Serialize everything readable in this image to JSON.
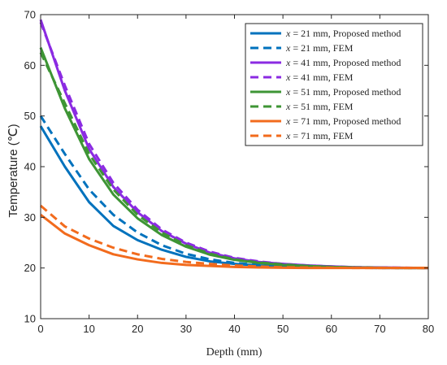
{
  "chart_data": {
    "type": "line",
    "title": "",
    "xlabel": "Depth (mm)",
    "ylabel": "Temperature (℃)",
    "xlim": [
      0,
      80
    ],
    "ylim": [
      10,
      70
    ],
    "xticks": [
      0,
      10,
      20,
      30,
      40,
      50,
      60,
      70,
      80
    ],
    "yticks": [
      10,
      20,
      30,
      40,
      50,
      60,
      70
    ],
    "grid": false,
    "legend_position": "top-right",
    "series": [
      {
        "name": "x = 21 mm, Proposed method",
        "name_var": "x",
        "name_rest": " = 21 mm, Proposed method",
        "color": "#0072BD",
        "dash": false,
        "x": [
          0,
          5,
          10,
          15,
          20,
          25,
          30,
          35,
          40,
          45,
          50,
          55,
          60,
          65,
          70,
          75,
          80
        ],
        "y": [
          48.0,
          40.0,
          33.0,
          28.3,
          25.5,
          23.6,
          22.2,
          21.3,
          20.8,
          20.5,
          20.3,
          20.2,
          20.1,
          20.05,
          20.0,
          20.0,
          20.0
        ]
      },
      {
        "name": "x = 21 mm, FEM",
        "name_var": "x",
        "name_rest": " = 21 mm, FEM",
        "color": "#0072BD",
        "dash": true,
        "x": [
          0,
          5,
          10,
          15,
          20,
          25,
          30,
          35,
          40,
          45,
          50,
          55,
          60,
          65,
          70,
          75,
          80
        ],
        "y": [
          50.0,
          42.5,
          35.5,
          30.5,
          27.0,
          24.5,
          22.8,
          21.7,
          21.0,
          20.6,
          20.4,
          20.2,
          20.1,
          20.05,
          20.0,
          20.0,
          20.0
        ]
      },
      {
        "name": "x = 41 mm, Proposed method",
        "name_var": "x",
        "name_rest": " = 41 mm, Proposed method",
        "color": "#8B2BE2",
        "dash": false,
        "x": [
          0,
          5,
          10,
          15,
          20,
          25,
          30,
          35,
          40,
          45,
          50,
          55,
          60,
          65,
          70,
          75,
          80
        ],
        "y": [
          69.0,
          55.0,
          43.5,
          36.0,
          31.0,
          27.3,
          24.8,
          23.0,
          21.9,
          21.2,
          20.8,
          20.5,
          20.3,
          20.15,
          20.1,
          20.05,
          20.0
        ]
      },
      {
        "name": "x = 41 mm, FEM",
        "name_var": "x",
        "name_rest": " = 41 mm, FEM",
        "color": "#8B2BE2",
        "dash": true,
        "x": [
          0,
          5,
          10,
          15,
          20,
          25,
          30,
          35,
          40,
          45,
          50,
          55,
          60,
          65,
          70,
          75,
          80
        ],
        "y": [
          68.5,
          56.0,
          44.5,
          36.8,
          31.5,
          27.6,
          25.0,
          23.2,
          22.0,
          21.3,
          20.8,
          20.5,
          20.3,
          20.15,
          20.1,
          20.05,
          20.0
        ]
      },
      {
        "name": "x = 51 mm, Proposed method",
        "name_var": "x",
        "name_rest": " = 51 mm, Proposed method",
        "color": "#3E9535",
        "dash": false,
        "x": [
          0,
          5,
          10,
          15,
          20,
          25,
          30,
          35,
          40,
          45,
          50,
          55,
          60,
          65,
          70,
          75,
          80
        ],
        "y": [
          63.5,
          51.5,
          41.5,
          34.5,
          29.8,
          26.5,
          24.2,
          22.6,
          21.6,
          21.0,
          20.6,
          20.4,
          20.2,
          20.1,
          20.05,
          20.0,
          20.0
        ]
      },
      {
        "name": "x = 51 mm, FEM",
        "name_var": "x",
        "name_rest": " = 51 mm, FEM",
        "color": "#3E9535",
        "dash": true,
        "x": [
          0,
          5,
          10,
          15,
          20,
          25,
          30,
          35,
          40,
          45,
          50,
          55,
          60,
          65,
          70,
          75,
          80
        ],
        "y": [
          62.5,
          52.5,
          42.5,
          35.5,
          30.5,
          27.0,
          24.5,
          22.8,
          21.7,
          21.1,
          20.7,
          20.4,
          20.2,
          20.1,
          20.05,
          20.0,
          20.0
        ]
      },
      {
        "name": "x = 71 mm, Proposed method",
        "name_var": "x",
        "name_rest": " = 71 mm, Proposed method",
        "color": "#F26B1D",
        "dash": false,
        "x": [
          0,
          5,
          10,
          15,
          20,
          25,
          30,
          35,
          40,
          45,
          50,
          55,
          60,
          65,
          70,
          75,
          80
        ],
        "y": [
          30.5,
          26.8,
          24.5,
          22.7,
          21.7,
          21.0,
          20.6,
          20.4,
          20.2,
          20.1,
          20.05,
          20.0,
          20.0,
          20.0,
          20.0,
          20.0,
          20.0
        ]
      },
      {
        "name": "x = 71 mm, FEM",
        "name_var": "x",
        "name_rest": " = 71 mm, FEM",
        "color": "#F26B1D",
        "dash": true,
        "x": [
          0,
          5,
          10,
          15,
          20,
          25,
          30,
          35,
          40,
          45,
          50,
          55,
          60,
          65,
          70,
          75,
          80
        ],
        "y": [
          32.3,
          28.2,
          25.8,
          24.0,
          22.7,
          21.8,
          21.2,
          20.8,
          20.5,
          20.3,
          20.15,
          20.1,
          20.05,
          20.0,
          20.0,
          20.0,
          20.0
        ]
      }
    ]
  }
}
